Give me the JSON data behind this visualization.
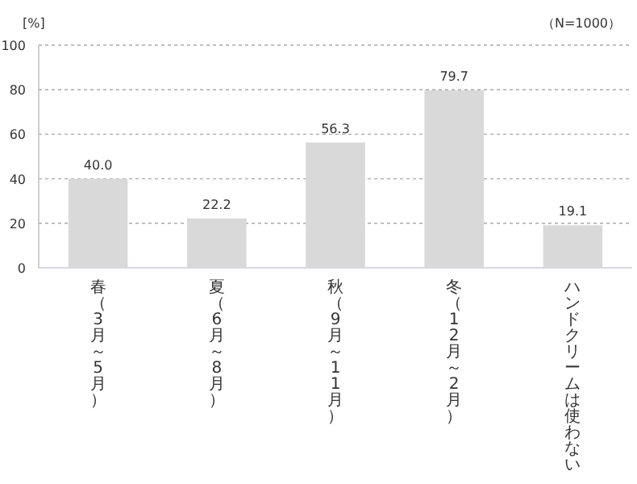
{
  "chart_data": {
    "type": "bar",
    "ylabel": "[%]",
    "annotations": [
      "（N=1000）"
    ],
    "categories": [
      "春（3月～5月）",
      "夏（6月～8月）",
      "秋（9月～11月）",
      "冬（12月～2月）",
      "ハンドクリームは使わない"
    ],
    "values": [
      40.0,
      22.2,
      56.3,
      79.7,
      19.1
    ],
    "value_labels": [
      "40.0",
      "22.2",
      "56.3",
      "79.7",
      "19.1"
    ],
    "color": "#d9d9d9",
    "ylim": [
      0,
      100
    ],
    "yticks": [
      0,
      20,
      40,
      60,
      80,
      100
    ],
    "grid": "y"
  }
}
